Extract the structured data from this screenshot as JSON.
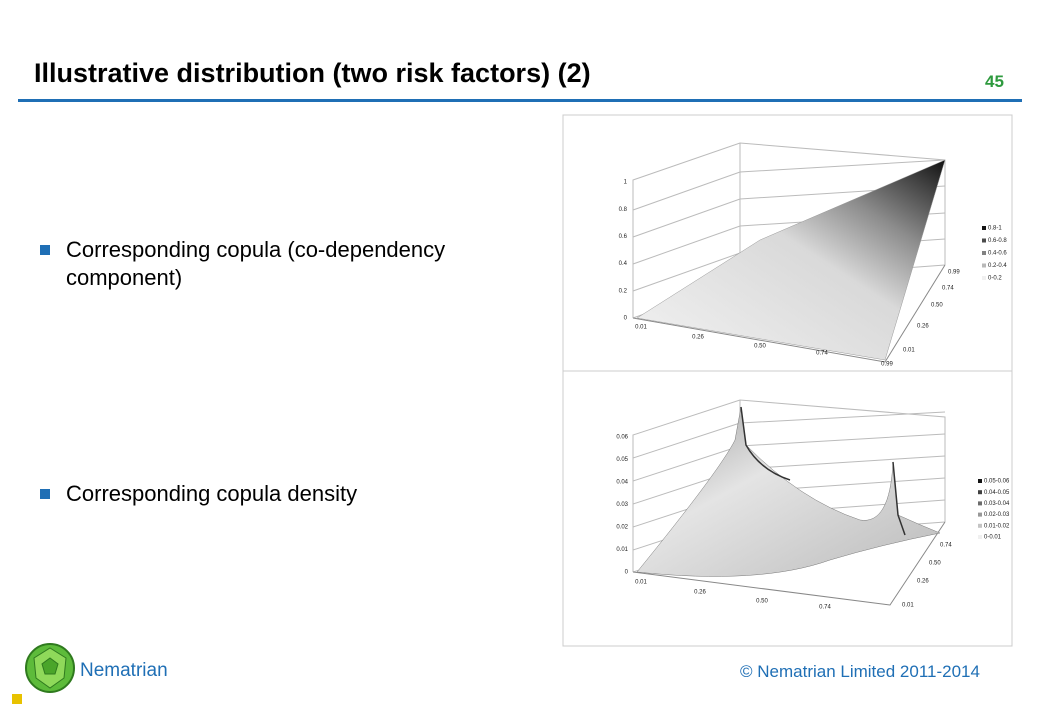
{
  "header": {
    "title": "Illustrative distribution (two risk factors) (2)",
    "page_number": "45"
  },
  "bullets": [
    "Corresponding copula (co-dependency component)",
    "Corresponding copula density"
  ],
  "figures": [
    {
      "z_ticks": [
        "0",
        "0.2",
        "0.4",
        "0.6",
        "0.8",
        "1"
      ],
      "x_ticks": [
        "0.01",
        "0.26",
        "0.50",
        "0.74",
        "0.99"
      ],
      "depth_ticks": [
        "0.01",
        "0.26",
        "0.50",
        "0.74",
        "0.99"
      ],
      "legend": [
        "0.8-1",
        "0.6-0.8",
        "0.4-0.6",
        "0.2-0.4",
        "0-0.2"
      ]
    },
    {
      "z_ticks": [
        "0",
        "0.01",
        "0.02",
        "0.03",
        "0.04",
        "0.05",
        "0.06"
      ],
      "x_ticks": [
        "0.01",
        "0.26",
        "0.50",
        "0.74"
      ],
      "depth_ticks": [
        "0.01",
        "0.26",
        "0.50",
        "0.74"
      ],
      "legend": [
        "0.05-0.06",
        "0.04-0.05",
        "0.03-0.04",
        "0.02-0.03",
        "0.01-0.02",
        "0-0.01"
      ]
    }
  ],
  "footer": {
    "brand": "Nematrian",
    "copyright": "© Nematrian Limited 2011-2014"
  }
}
